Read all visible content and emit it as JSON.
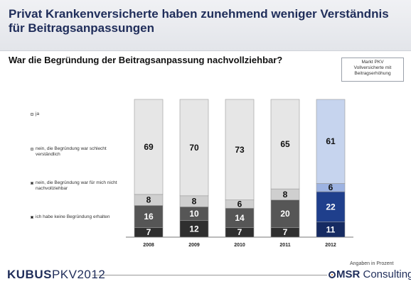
{
  "header": {
    "title": "Privat Krankenversicherte haben zunehmend weniger Verständnis für Beitragsanpassungen",
    "subtitle": "War die Begründung der Beitragsanpassung nachvollziehbar?"
  },
  "info_box": {
    "lines": [
      "Markt PKV",
      "Vollversicherte  mit",
      "Beitragserhöhung"
    ]
  },
  "footer": {
    "brand_bold": "KUBUS",
    "brand_regular": "PKV2012",
    "units_note": "Angaben in Prozent",
    "company_bold": "MSR",
    "company_regular": " Consulting"
  },
  "colors": {
    "ja": "#e6e6e6",
    "schlecht": "#cfcfcf",
    "nicht": "#565656",
    "keine": "#2f2f2f",
    "ja_2012": "#c6d4ee",
    "schlecht_2012": "#9db3e2",
    "nicht_2012": "#1f3f8c",
    "keine_2012": "#162b62"
  },
  "chart_data": {
    "type": "bar",
    "stacked": true,
    "percent": true,
    "title": "War die Begründung der Beitragsanpassung nachvollziehbar?",
    "categories": [
      "2008",
      "2009",
      "2010",
      "2011",
      "2012"
    ],
    "series": [
      {
        "name": "ich habe keine Begründung erhalten",
        "values": [
          7,
          12,
          7,
          7,
          11
        ]
      },
      {
        "name": "nein, die Begründung war für mich nicht nachvollziehbar",
        "values": [
          16,
          10,
          14,
          20,
          22
        ]
      },
      {
        "name": "nein, die Begründung war schlecht verständlich",
        "values": [
          8,
          8,
          6,
          8,
          6
        ]
      },
      {
        "name": "ja",
        "values": [
          69,
          70,
          73,
          65,
          61
        ]
      }
    ],
    "highlight_category": "2012",
    "ylim": [
      0,
      100
    ],
    "legend_position": "left",
    "grid": false
  }
}
